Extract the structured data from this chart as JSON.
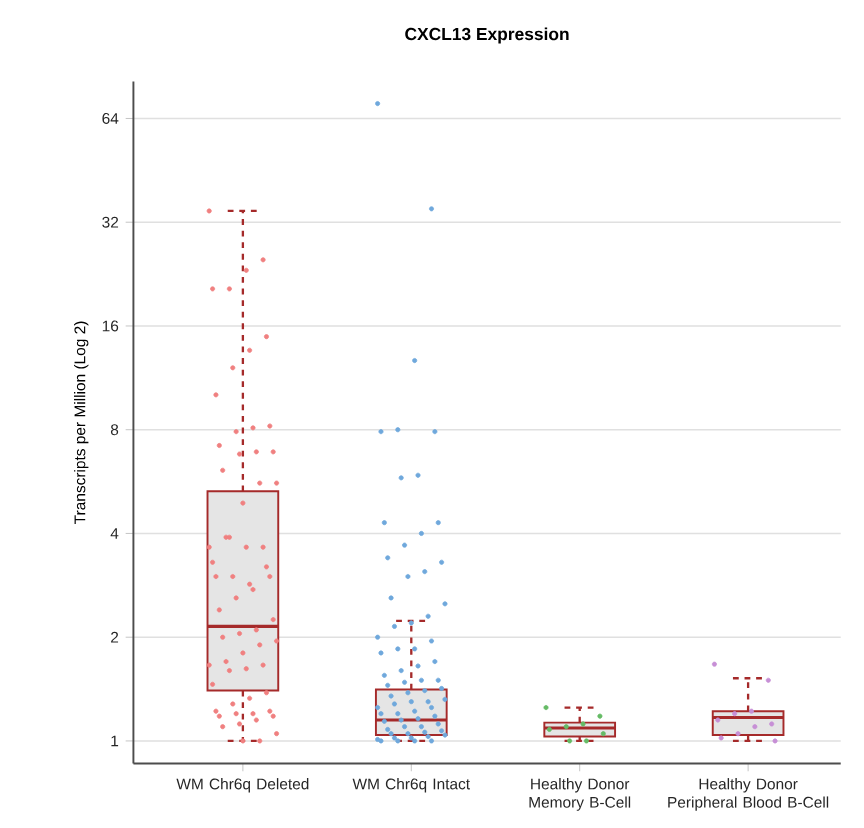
{
  "chart_data": {
    "type": "box",
    "title": "CXCL13 Expression",
    "ylabel": "Transcripts per Million (Log 2)",
    "categories": [
      "WM Chr6q Deleted",
      "WM Chr6q Intact",
      "Healthy Donor Memory B-Cell",
      "Healthy Donor Peripheral Blood B-Cell"
    ],
    "color": "#a52a2a",
    "boxes": [
      {
        "low": 1.0,
        "q1": 1.4,
        "median": 2.15,
        "q3": 5.3,
        "high": 34.5
      },
      {
        "low": 1.0,
        "q1": 1.04,
        "median": 1.15,
        "q3": 1.41,
        "high": 2.23
      },
      {
        "low": 1.0,
        "q1": 1.03,
        "median": 1.09,
        "q3": 1.13,
        "high": 1.25
      },
      {
        "low": 1.0,
        "q1": 1.04,
        "median": 1.17,
        "q3": 1.22,
        "high": 1.52
      }
    ],
    "series": [
      {
        "type": "scatter",
        "color": "#f08080",
        "x": [
          "WM Chr6q Deleted",
          "WM Chr6q Deleted",
          "WM Chr6q Deleted",
          "WM Chr6q Deleted",
          "WM Chr6q Deleted",
          "WM Chr6q Deleted",
          "WM Chr6q Deleted",
          "WM Chr6q Deleted",
          "WM Chr6q Deleted",
          "WM Chr6q Deleted",
          "WM Chr6q Deleted",
          "WM Chr6q Deleted",
          "WM Chr6q Deleted",
          "WM Chr6q Deleted",
          "WM Chr6q Deleted",
          "WM Chr6q Deleted",
          "WM Chr6q Deleted",
          "WM Chr6q Deleted",
          "WM Chr6q Deleted",
          "WM Chr6q Deleted",
          "WM Chr6q Deleted",
          "WM Chr6q Deleted",
          "WM Chr6q Deleted",
          "WM Chr6q Deleted",
          "WM Chr6q Deleted",
          "WM Chr6q Deleted",
          "WM Chr6q Deleted",
          "WM Chr6q Deleted",
          "WM Chr6q Deleted",
          "WM Chr6q Deleted",
          "WM Chr6q Deleted",
          "WM Chr6q Deleted",
          "WM Chr6q Deleted",
          "WM Chr6q Deleted",
          "WM Chr6q Deleted",
          "WM Chr6q Deleted",
          "WM Chr6q Deleted",
          "WM Chr6q Deleted",
          "WM Chr6q Deleted",
          "WM Chr6q Deleted",
          "WM Chr6q Deleted",
          "WM Chr6q Deleted",
          "WM Chr6q Deleted",
          "WM Chr6q Deleted",
          "WM Chr6q Deleted",
          "WM Chr6q Deleted",
          "WM Chr6q Deleted",
          "WM Chr6q Deleted",
          "WM Chr6q Deleted",
          "WM Chr6q Deleted",
          "WM Chr6q Deleted",
          "WM Chr6q Deleted",
          "WM Chr6q Deleted",
          "WM Chr6q Deleted",
          "WM Chr6q Deleted",
          "WM Chr6q Deleted",
          "WM Chr6q Deleted",
          "WM Chr6q Deleted",
          "WM Chr6q Deleted",
          "WM Chr6q Deleted",
          "WM Chr6q Deleted",
          "WM Chr6q Deleted"
        ],
        "values": [
          34.5,
          24.9,
          23.2,
          20.5,
          20.5,
          14.9,
          13.6,
          12.1,
          10.1,
          8.2,
          8.1,
          7.9,
          7.2,
          6.9,
          6.9,
          6.8,
          6.1,
          5.6,
          5.6,
          4.9,
          3.9,
          3.65,
          3.65,
          3.65,
          3.9,
          3.3,
          3.2,
          2.85,
          3.0,
          3.0,
          3.0,
          2.75,
          2.6,
          2.4,
          2.25,
          2.1,
          2.05,
          2.0,
          1.95,
          1.9,
          1.8,
          1.7,
          1.66,
          1.66,
          1.62,
          1.6,
          1.46,
          1.38,
          1.33,
          1.28,
          1.22,
          1.22,
          1.2,
          1.2,
          1.18,
          1.18,
          1.15,
          1.12,
          1.1,
          1.05,
          1.0,
          1.0
        ]
      },
      {
        "type": "scatter",
        "color": "#6fa8dc",
        "x": [
          "WM Chr6q Intact",
          "WM Chr6q Intact",
          "WM Chr6q Intact",
          "WM Chr6q Intact",
          "WM Chr6q Intact",
          "WM Chr6q Intact",
          "WM Chr6q Intact",
          "WM Chr6q Intact",
          "WM Chr6q Intact",
          "WM Chr6q Intact",
          "WM Chr6q Intact",
          "WM Chr6q Intact",
          "WM Chr6q Intact",
          "WM Chr6q Intact",
          "WM Chr6q Intact",
          "WM Chr6q Intact",
          "WM Chr6q Intact",
          "WM Chr6q Intact",
          "WM Chr6q Intact",
          "WM Chr6q Intact",
          "WM Chr6q Intact",
          "WM Chr6q Intact",
          "WM Chr6q Intact",
          "WM Chr6q Intact",
          "WM Chr6q Intact",
          "WM Chr6q Intact",
          "WM Chr6q Intact",
          "WM Chr6q Intact",
          "WM Chr6q Intact",
          "WM Chr6q Intact",
          "WM Chr6q Intact",
          "WM Chr6q Intact",
          "WM Chr6q Intact",
          "WM Chr6q Intact",
          "WM Chr6q Intact",
          "WM Chr6q Intact",
          "WM Chr6q Intact",
          "WM Chr6q Intact",
          "WM Chr6q Intact",
          "WM Chr6q Intact",
          "WM Chr6q Intact",
          "WM Chr6q Intact",
          "WM Chr6q Intact",
          "WM Chr6q Intact",
          "WM Chr6q Intact",
          "WM Chr6q Intact",
          "WM Chr6q Intact",
          "WM Chr6q Intact",
          "WM Chr6q Intact",
          "WM Chr6q Intact",
          "WM Chr6q Intact",
          "WM Chr6q Intact",
          "WM Chr6q Intact",
          "WM Chr6q Intact",
          "WM Chr6q Intact",
          "WM Chr6q Intact",
          "WM Chr6q Intact",
          "WM Chr6q Intact",
          "WM Chr6q Intact",
          "WM Chr6q Intact",
          "WM Chr6q Intact",
          "WM Chr6q Intact",
          "WM Chr6q Intact",
          "WM Chr6q Intact",
          "WM Chr6q Intact",
          "WM Chr6q Intact",
          "WM Chr6q Intact",
          "WM Chr6q Intact"
        ],
        "values": [
          70.7,
          35,
          12.7,
          8.0,
          7.9,
          7.9,
          5.9,
          5.8,
          4.3,
          4.3,
          4.0,
          3.7,
          3.4,
          3.3,
          3.1,
          3.0,
          2.6,
          2.5,
          2.3,
          2.2,
          2.15,
          2.0,
          1.95,
          1.85,
          1.85,
          1.8,
          1.7,
          1.65,
          1.6,
          1.55,
          1.5,
          1.5,
          1.48,
          1.45,
          1.42,
          1.4,
          1.38,
          1.35,
          1.32,
          1.3,
          1.3,
          1.28,
          1.25,
          1.25,
          1.22,
          1.2,
          1.2,
          1.18,
          1.16,
          1.15,
          1.14,
          1.12,
          1.1,
          1.1,
          1.08,
          1.07,
          1.06,
          1.05,
          1.05,
          1.04,
          1.03,
          1.02,
          1.02,
          1.01,
          1.0,
          1.0,
          1.0,
          1.0
        ]
      },
      {
        "type": "scatter",
        "color": "#66bb66",
        "x": [
          "Healthy Donor Memory B-Cell",
          "Healthy Donor Memory B-Cell",
          "Healthy Donor Memory B-Cell",
          "Healthy Donor Memory B-Cell",
          "Healthy Donor Memory B-Cell",
          "Healthy Donor Memory B-Cell",
          "Healthy Donor Memory B-Cell",
          "Healthy Donor Memory B-Cell"
        ],
        "values": [
          1.25,
          1.18,
          1.12,
          1.1,
          1.08,
          1.05,
          1.0,
          1.0
        ]
      },
      {
        "type": "scatter",
        "color": "#c78fd6",
        "x": [
          "Healthy Donor Peripheral Blood B-Cell",
          "Healthy Donor Peripheral Blood B-Cell",
          "Healthy Donor Peripheral Blood B-Cell",
          "Healthy Donor Peripheral Blood B-Cell",
          "Healthy Donor Peripheral Blood B-Cell",
          "Healthy Donor Peripheral Blood B-Cell",
          "Healthy Donor Peripheral Blood B-Cell",
          "Healthy Donor Peripheral Blood B-Cell",
          "Healthy Donor Peripheral Blood B-Cell",
          "Healthy Donor Peripheral Blood B-Cell"
        ],
        "values": [
          1.67,
          1.5,
          1.22,
          1.2,
          1.15,
          1.12,
          1.1,
          1.05,
          1.02,
          1.0
        ]
      }
    ],
    "log": "y",
    "ylim": [
      0.86,
      82
    ],
    "yticks": [
      1,
      2,
      4,
      8,
      16,
      32,
      64
    ],
    "grid": "y",
    "marker": "circle"
  }
}
